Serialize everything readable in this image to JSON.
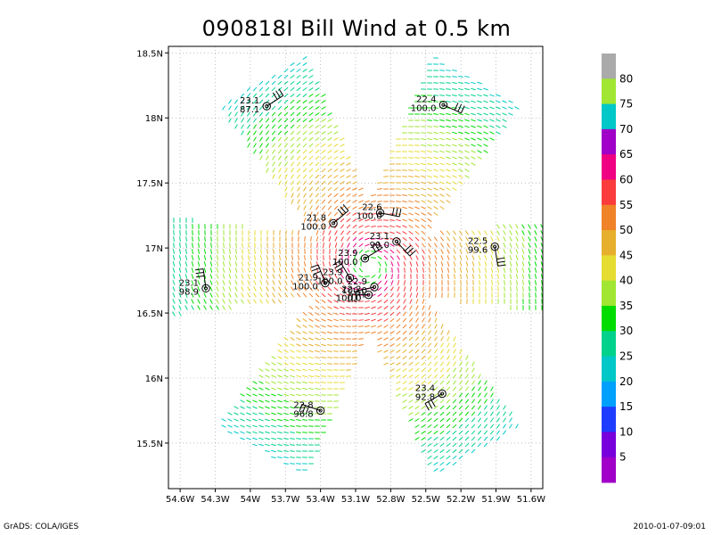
{
  "title": "090818I Bill Wind at 0.5 km",
  "footer": {
    "left": "GrADS: COLA/IGES",
    "right": "2010-01-07-09:01"
  },
  "map": {
    "lon_range": [
      -54.7,
      -51.5
    ],
    "lat_range": [
      15.15,
      18.55
    ],
    "lon_ticks": [
      {
        "v": -54.6,
        "label": "54.6W"
      },
      {
        "v": -54.3,
        "label": "54.3W"
      },
      {
        "v": -54.0,
        "label": "54W"
      },
      {
        "v": -53.7,
        "label": "53.7W"
      },
      {
        "v": -53.4,
        "label": "53.4W"
      },
      {
        "v": -53.1,
        "label": "53.1W"
      },
      {
        "v": -52.8,
        "label": "52.8W"
      },
      {
        "v": -52.5,
        "label": "52.5W"
      },
      {
        "v": -52.2,
        "label": "52.2W"
      },
      {
        "v": -51.9,
        "label": "51.9W"
      },
      {
        "v": -51.6,
        "label": "51.6W"
      }
    ],
    "lat_ticks": [
      {
        "v": 18.5,
        "label": "18.5N"
      },
      {
        "v": 18.0,
        "label": "18N"
      },
      {
        "v": 17.5,
        "label": "17.5N"
      },
      {
        "v": 17.0,
        "label": "17N"
      },
      {
        "v": 16.5,
        "label": "16.5N"
      },
      {
        "v": 16.0,
        "label": "16N"
      },
      {
        "v": 15.5,
        "label": "15.5N"
      }
    ],
    "center": {
      "lon": -52.98,
      "lat": 16.86
    },
    "grid": true
  },
  "colorbar": {
    "labels": [
      "5",
      "10",
      "15",
      "20",
      "25",
      "30",
      "35",
      "40",
      "45",
      "50",
      "55",
      "60",
      "65",
      "70",
      "75",
      "80"
    ],
    "colors": [
      "#a000c8",
      "#7800dc",
      "#1e3cff",
      "#00a0ff",
      "#00c8c8",
      "#00d28c",
      "#00dc00",
      "#a0e632",
      "#e6dc32",
      "#e6af2d",
      "#f08228",
      "#fa3c3c",
      "#f00082",
      "#a000c8",
      "#00c8c8",
      "#a0e632",
      "#aaaaaa"
    ]
  },
  "dropsondes": [
    {
      "lon": -53.86,
      "lat": 18.09,
      "t": "23.1",
      "p": "87.1",
      "lbl": "left"
    },
    {
      "lon": -52.35,
      "lat": 18.1,
      "t": "22.4",
      "p": "100.0",
      "lbl": "left"
    },
    {
      "lon": -52.89,
      "lat": 17.27,
      "t": "22.6",
      "p": "100.0",
      "lbl": "above"
    },
    {
      "lon": -53.29,
      "lat": 17.19,
      "t": "21.8",
      "p": "100.0",
      "lbl": "left"
    },
    {
      "lon": -52.75,
      "lat": 17.05,
      "t": "23.1",
      "p": "99.0",
      "lbl": "left"
    },
    {
      "lon": -51.91,
      "lat": 17.01,
      "t": "22.5",
      "p": "99.6",
      "lbl": "left"
    },
    {
      "lon": -53.02,
      "lat": 16.92,
      "t": "23.9",
      "p": "100.0",
      "lbl": "left"
    },
    {
      "lon": -54.38,
      "lat": 16.69,
      "t": "23.1",
      "p": "98.9",
      "lbl": "left"
    },
    {
      "lon": -53.36,
      "lat": 16.73,
      "t": "21.9",
      "p": "100.0",
      "lbl": "left"
    },
    {
      "lon": -53.15,
      "lat": 16.77,
      "t": "23.9",
      "p": "100.0",
      "lbl": "left"
    },
    {
      "lon": -52.94,
      "lat": 16.7,
      "t": "22.9",
      "p": "100.0",
      "lbl": "left"
    },
    {
      "lon": -52.99,
      "lat": 16.64,
      "t": "22.2",
      "p": "100.0",
      "lbl": "left"
    },
    {
      "lon": -53.4,
      "lat": 15.75,
      "t": "22.8",
      "p": "96.8",
      "lbl": "left"
    },
    {
      "lon": -52.36,
      "lat": 15.88,
      "t": "23.4",
      "p": "92.8",
      "lbl": "left"
    }
  ]
}
